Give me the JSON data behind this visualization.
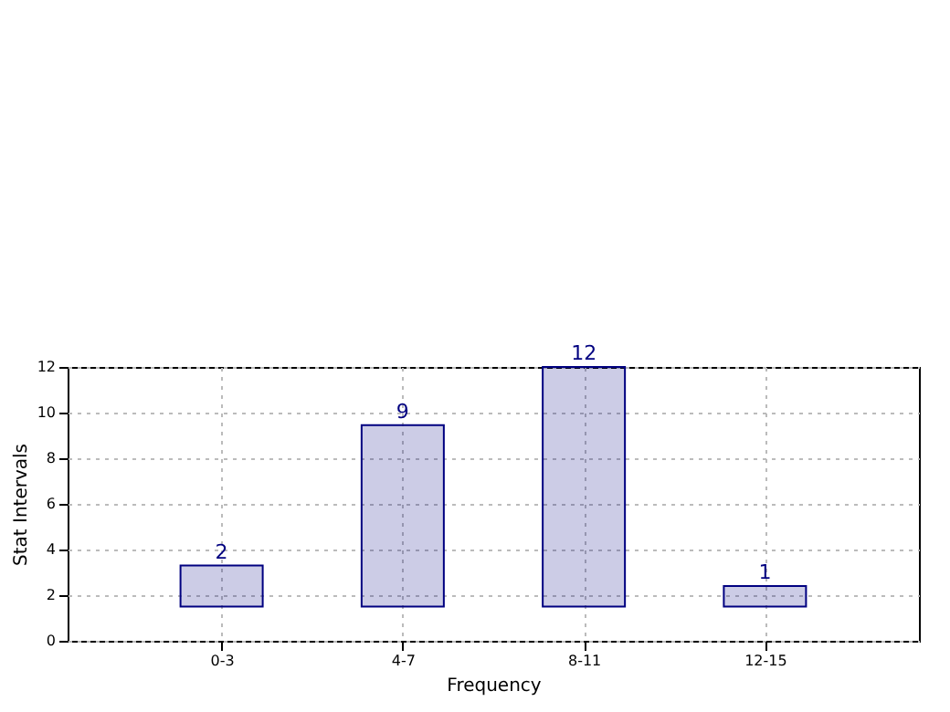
{
  "chart_data": {
    "type": "bar",
    "xlabel": "Frequency",
    "ylabel": "Stat Intervals",
    "categories": [
      "0-3",
      "4-7",
      "8-11",
      "12-15"
    ],
    "values": [
      1.8,
      7.95,
      10.5,
      0.9
    ],
    "color": "#000080",
    "base": [
      1.5,
      1.5,
      1.5,
      1.5
    ],
    "value_labels": [
      "2",
      "9",
      "12",
      "1"
    ],
    "ylim": [
      0,
      12
    ],
    "yticks": [
      0,
      2,
      4,
      6,
      8,
      10,
      12
    ],
    "grid": true
  }
}
